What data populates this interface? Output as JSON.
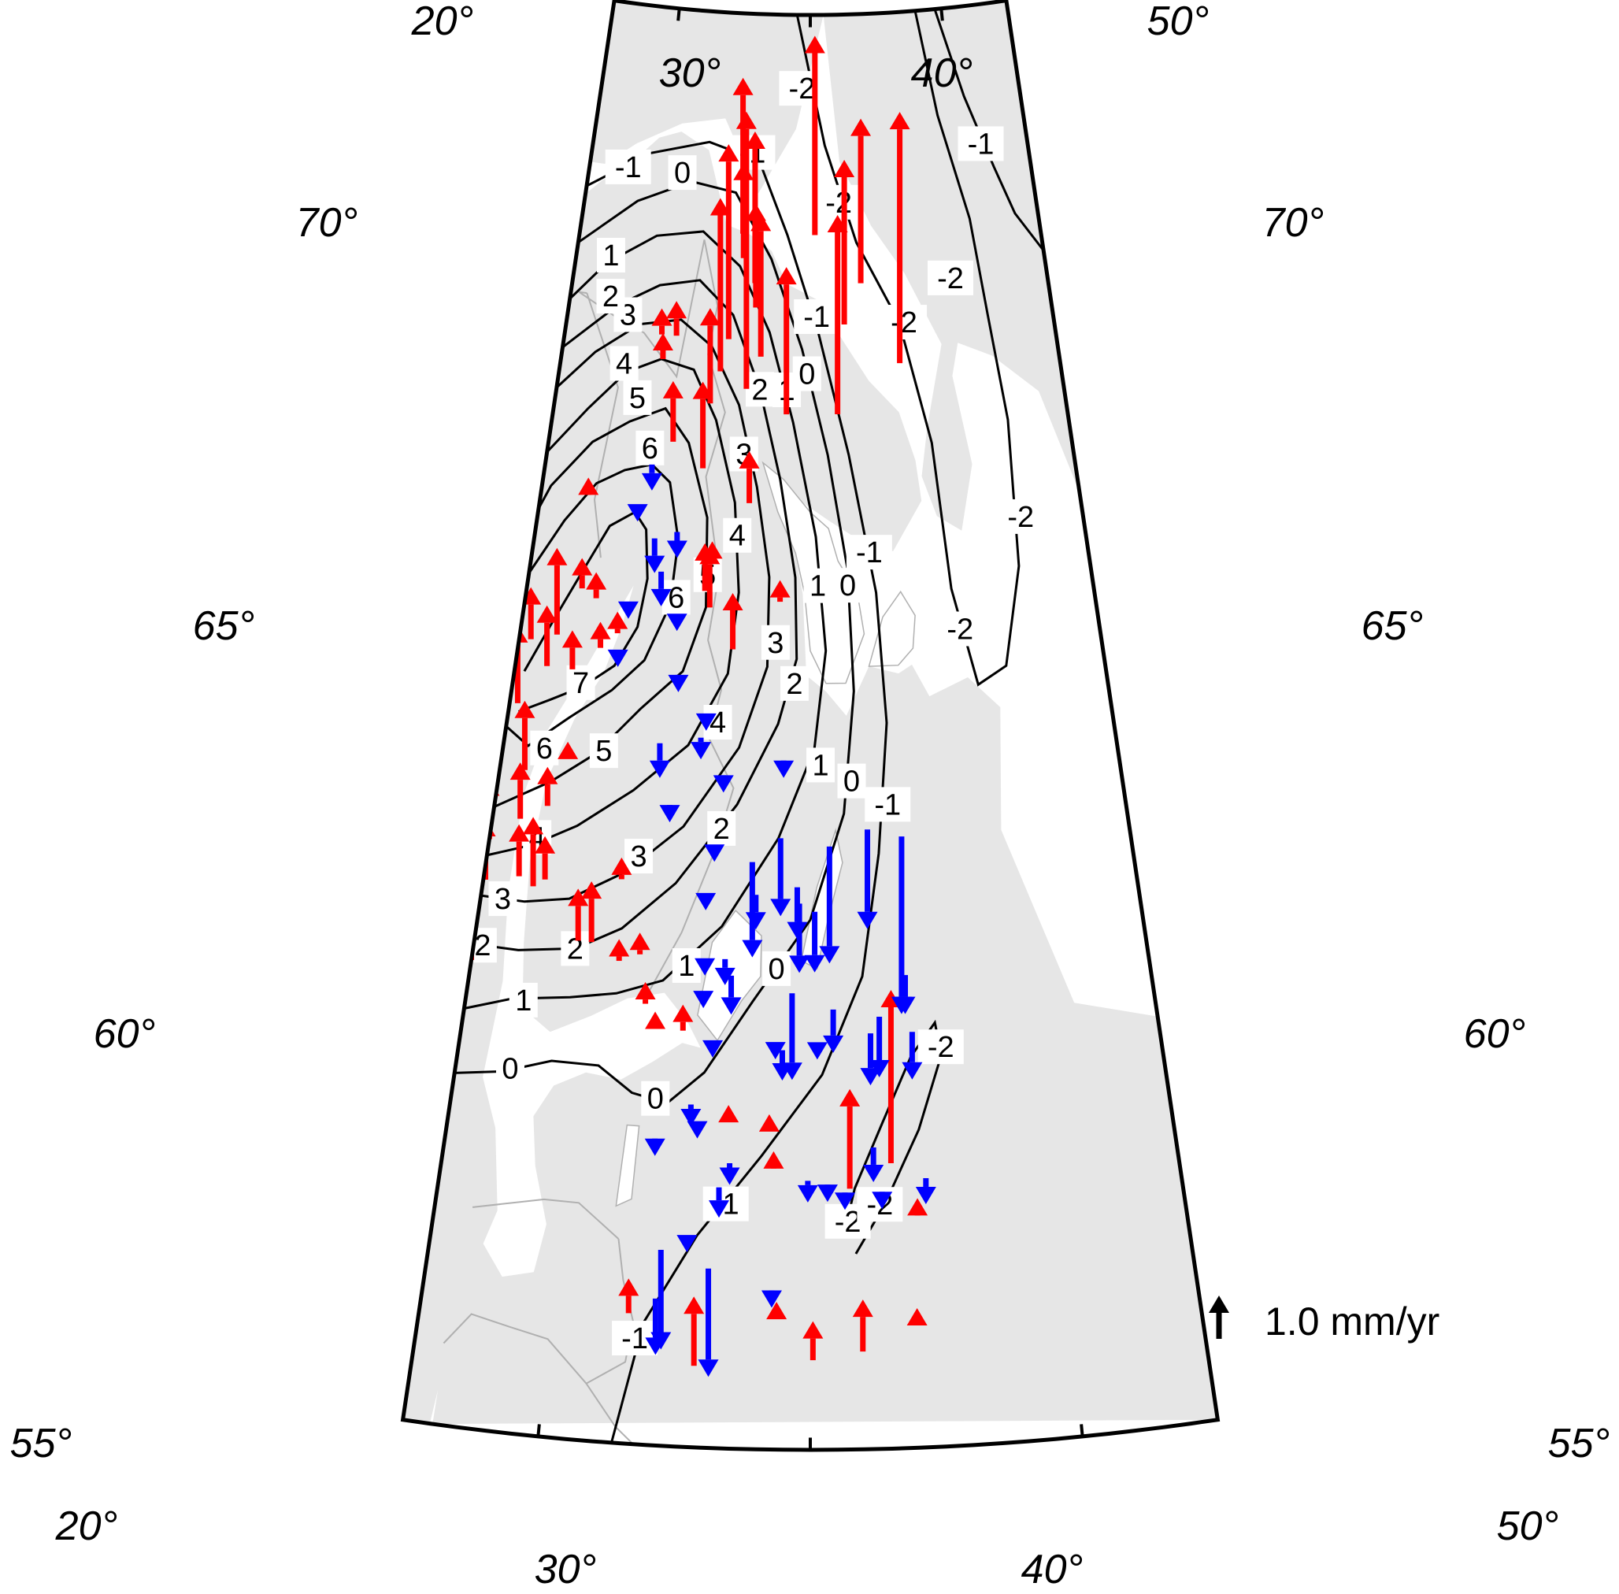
{
  "map": {
    "longitude_ticks": [
      "20°",
      "30°",
      "40°",
      "50°"
    ],
    "latitude_ticks": [
      "55°",
      "60°",
      "65°",
      "70°"
    ],
    "contour_levels": [
      "-2",
      "-1",
      "0",
      "1",
      "2",
      "3",
      "4",
      "5",
      "6",
      "7"
    ],
    "legend": {
      "label": "1.0 mm/yr"
    },
    "colors": {
      "uplift": "#ff0000",
      "subsidence": "#0000ff",
      "land": "#e6e6e6",
      "water": "#ffffff",
      "contour": "#000000"
    },
    "vectors": [
      {
        "lon": 30.6,
        "lat": 69.9,
        "v": 3.6
      },
      {
        "lon": 30.7,
        "lat": 69.6,
        "v": 2.2
      },
      {
        "lon": 31.5,
        "lat": 69.3,
        "v": 3.5
      },
      {
        "lon": 31.6,
        "lat": 69.0,
        "v": 2.4
      },
      {
        "lon": 35.3,
        "lat": 69.9,
        "v": 4.6
      },
      {
        "lon": 37.1,
        "lat": 68.8,
        "v": 3.8
      },
      {
        "lon": 38.2,
        "lat": 69.3,
        "v": 3.8
      },
      {
        "lon": 40.4,
        "lat": 68.3,
        "v": 5.8
      },
      {
        "lon": 29.6,
        "lat": 68.2,
        "v": 4.0
      },
      {
        "lon": 30.0,
        "lat": 68.6,
        "v": 4.5
      },
      {
        "lon": 31.2,
        "lat": 68.0,
        "v": 6.4
      },
      {
        "lon": 32.0,
        "lat": 68.4,
        "v": 3.3
      },
      {
        "lon": 33.6,
        "lat": 67.7,
        "v": 3.4
      },
      {
        "lon": 36.6,
        "lat": 67.7,
        "v": 4.6
      },
      {
        "lon": 26.8,
        "lat": 68.6,
        "v": 0.8
      },
      {
        "lon": 25.9,
        "lat": 68.6,
        "v": 0.6
      },
      {
        "lon": 26.1,
        "lat": 68.3,
        "v": 0.6
      },
      {
        "lon": 29.1,
        "lat": 67.8,
        "v": 2.2
      },
      {
        "lon": 27.1,
        "lat": 67.3,
        "v": 1.4
      },
      {
        "lon": 28.9,
        "lat": 67.0,
        "v": 2.0
      },
      {
        "lon": 31.6,
        "lat": 66.6,
        "v": 1.2
      },
      {
        "lon": 29.7,
        "lat": 65.9,
        "v": 0.4
      },
      {
        "lon": 29.4,
        "lat": 65.5,
        "v": 1.1
      },
      {
        "lon": 29.7,
        "lat": 65.3,
        "v": 1.4
      },
      {
        "lon": 31.0,
        "lat": 64.8,
        "v": 1.3
      },
      {
        "lon": 33.4,
        "lat": 65.4,
        "v": 0.5
      },
      {
        "lon": 22.6,
        "lat": 66.6,
        "v": 0.3
      },
      {
        "lon": 22.9,
        "lat": 65.4,
        "v": 0.7
      },
      {
        "lon": 23.7,
        "lat": 65.3,
        "v": 0.6
      },
      {
        "lon": 25.0,
        "lat": 64.9,
        "v": 0.5
      },
      {
        "lon": 24.2,
        "lat": 64.7,
        "v": 0.6
      },
      {
        "lon": 22.9,
        "lat": 64.4,
        "v": 0.9
      },
      {
        "lon": 20.6,
        "lat": 64.7,
        "v": 1.2
      },
      {
        "lon": 21.9,
        "lat": 64.8,
        "v": 2.0
      },
      {
        "lon": 21.6,
        "lat": 64.4,
        "v": 1.4
      },
      {
        "lon": 20.4,
        "lat": 63.9,
        "v": 1.8
      },
      {
        "lon": 19.5,
        "lat": 64.4,
        "v": 1.6
      },
      {
        "lon": 19.0,
        "lat": 64.0,
        "v": 1.5
      },
      {
        "lon": 18.8,
        "lat": 63.2,
        "v": 2.6
      },
      {
        "lon": 19.2,
        "lat": 62.6,
        "v": 1.9
      },
      {
        "lon": 19.6,
        "lat": 62.9,
        "v": 2.8
      },
      {
        "lon": 20.0,
        "lat": 62.2,
        "v": 1.4
      },
      {
        "lon": 21.2,
        "lat": 63.1,
        "v": 1.6
      },
      {
        "lon": 21.3,
        "lat": 62.5,
        "v": 1.3
      },
      {
        "lon": 22.5,
        "lat": 62.7,
        "v": 0.9
      },
      {
        "lon": 23.2,
        "lat": 63.3,
        "v": 0.4
      },
      {
        "lon": 22.3,
        "lat": 61.7,
        "v": 1.6
      },
      {
        "lon": 20.1,
        "lat": 61.7,
        "v": 1.4
      },
      {
        "lon": 19.7,
        "lat": 61.3,
        "v": 2.8
      },
      {
        "lon": 20.0,
        "lat": 60.7,
        "v": 3.1
      },
      {
        "lon": 21.6,
        "lat": 61.8,
        "v": 1.2
      },
      {
        "lon": 22.8,
        "lat": 61.8,
        "v": 1.0
      },
      {
        "lon": 24.6,
        "lat": 61.1,
        "v": 1.2
      },
      {
        "lon": 26.3,
        "lat": 61.9,
        "v": 0.5
      },
      {
        "lon": 25.2,
        "lat": 61.1,
        "v": 1.4
      },
      {
        "lon": 26.5,
        "lat": 60.9,
        "v": 0.5
      },
      {
        "lon": 27.4,
        "lat": 61.0,
        "v": 0.5
      },
      {
        "lon": 27.8,
        "lat": 60.4,
        "v": 0.5
      },
      {
        "lon": 28.3,
        "lat": 60.1,
        "v": 0.4
      },
      {
        "lon": 29.5,
        "lat": 60.1,
        "v": 0.6
      },
      {
        "lon": 31.6,
        "lat": 59.0,
        "v": 0.4
      },
      {
        "lon": 33.3,
        "lat": 58.9,
        "v": 0.4
      },
      {
        "lon": 33.5,
        "lat": 58.5,
        "v": 0.3
      },
      {
        "lon": 36.6,
        "lat": 58.2,
        "v": 2.3
      },
      {
        "lon": 38.3,
        "lat": 58.5,
        "v": 4.0
      },
      {
        "lon": 39.3,
        "lat": 57.9,
        "v": 0.3
      },
      {
        "lon": 28.0,
        "lat": 56.6,
        "v": 0.8
      },
      {
        "lon": 30.6,
        "lat": 56.0,
        "v": 1.6
      },
      {
        "lon": 35.1,
        "lat": 56.1,
        "v": 0.9
      },
      {
        "lon": 37.0,
        "lat": 56.2,
        "v": 1.2
      },
      {
        "lon": 39.1,
        "lat": 56.5,
        "v": 0.4
      },
      {
        "lon": 33.7,
        "lat": 56.6,
        "v": 0.4
      },
      {
        "lon": 26.0,
        "lat": 67.0,
        "v": -0.6
      },
      {
        "lon": 25.4,
        "lat": 66.5,
        "v": -0.4
      },
      {
        "lon": 26.5,
        "lat": 66.1,
        "v": -0.8
      },
      {
        "lon": 27.7,
        "lat": 66.2,
        "v": -0.6
      },
      {
        "lon": 27.0,
        "lat": 65.7,
        "v": -0.8
      },
      {
        "lon": 25.4,
        "lat": 65.3,
        "v": -0.4
      },
      {
        "lon": 25.1,
        "lat": 64.7,
        "v": -0.4
      },
      {
        "lon": 28.0,
        "lat": 65.2,
        "v": -0.4
      },
      {
        "lon": 28.3,
        "lat": 64.4,
        "v": -0.3
      },
      {
        "lon": 29.8,
        "lat": 64.0,
        "v": -0.4
      },
      {
        "lon": 29.6,
        "lat": 63.7,
        "v": -0.5
      },
      {
        "lon": 27.6,
        "lat": 63.6,
        "v": -0.8
      },
      {
        "lon": 30.8,
        "lat": 63.2,
        "v": -0.3
      },
      {
        "lon": 28.3,
        "lat": 62.8,
        "v": -0.3
      },
      {
        "lon": 30.5,
        "lat": 62.4,
        "v": -0.4
      },
      {
        "lon": 33.7,
        "lat": 63.4,
        "v": -0.3
      },
      {
        "lon": 33.6,
        "lat": 62.5,
        "v": -1.8
      },
      {
        "lon": 34.4,
        "lat": 61.9,
        "v": -1.2
      },
      {
        "lon": 34.5,
        "lat": 61.7,
        "v": -1.6
      },
      {
        "lon": 35.2,
        "lat": 61.6,
        "v": -1.4
      },
      {
        "lon": 35.9,
        "lat": 62.4,
        "v": -2.7
      },
      {
        "lon": 37.7,
        "lat": 62.6,
        "v": -2.3
      },
      {
        "lon": 39.3,
        "lat": 62.5,
        "v": -4.1
      },
      {
        "lon": 32.5,
        "lat": 61.8,
        "v": -0.8
      },
      {
        "lon": 32.3,
        "lat": 62.2,
        "v": -2.2
      },
      {
        "lon": 30.2,
        "lat": 61.8,
        "v": -0.4
      },
      {
        "lon": 30.3,
        "lat": 61.0,
        "v": -0.4
      },
      {
        "lon": 30.3,
        "lat": 60.6,
        "v": -0.4
      },
      {
        "lon": 31.2,
        "lat": 61.0,
        "v": -0.6
      },
      {
        "lon": 31.5,
        "lat": 60.8,
        "v": -0.9
      },
      {
        "lon": 30.8,
        "lat": 60.0,
        "v": -0.4
      },
      {
        "lon": 33.5,
        "lat": 60.0,
        "v": -0.4
      },
      {
        "lon": 33.8,
        "lat": 59.9,
        "v": -0.7
      },
      {
        "lon": 34.2,
        "lat": 60.6,
        "v": -2.0
      },
      {
        "lon": 35.3,
        "lat": 60.0,
        "v": -0.4
      },
      {
        "lon": 36.0,
        "lat": 60.4,
        "v": -1.0
      },
      {
        "lon": 37.6,
        "lat": 60.1,
        "v": -1.2
      },
      {
        "lon": 38.0,
        "lat": 60.3,
        "v": -1.4
      },
      {
        "lon": 39.2,
        "lat": 60.8,
        "v": -0.9
      },
      {
        "lon": 39.4,
        "lat": 60.1,
        "v": -1.1
      },
      {
        "lon": 30.0,
        "lat": 59.2,
        "v": -0.5
      },
      {
        "lon": 30.3,
        "lat": 59.0,
        "v": -0.4
      },
      {
        "lon": 28.6,
        "lat": 58.7,
        "v": -0.2
      },
      {
        "lon": 31.7,
        "lat": 58.5,
        "v": -0.5
      },
      {
        "lon": 31.3,
        "lat": 58.2,
        "v": -0.7
      },
      {
        "lon": 30.1,
        "lat": 57.6,
        "v": -0.4
      },
      {
        "lon": 34.9,
        "lat": 58.3,
        "v": -0.5
      },
      {
        "lon": 35.7,
        "lat": 58.2,
        "v": -0.3
      },
      {
        "lon": 36.4,
        "lat": 58.1,
        "v": -0.3
      },
      {
        "lon": 37.9,
        "lat": 58.1,
        "v": -0.3
      },
      {
        "lon": 37.6,
        "lat": 58.7,
        "v": -0.8
      },
      {
        "lon": 39.7,
        "lat": 58.3,
        "v": -0.6
      },
      {
        "lon": 33.5,
        "lat": 56.9,
        "v": -0.3
      },
      {
        "lon": 29.1,
        "lat": 57.4,
        "v": -2.3
      },
      {
        "lon": 29.0,
        "lat": 56.8,
        "v": -1.3
      },
      {
        "lon": 31.0,
        "lat": 57.2,
        "v": -2.5
      }
    ]
  }
}
